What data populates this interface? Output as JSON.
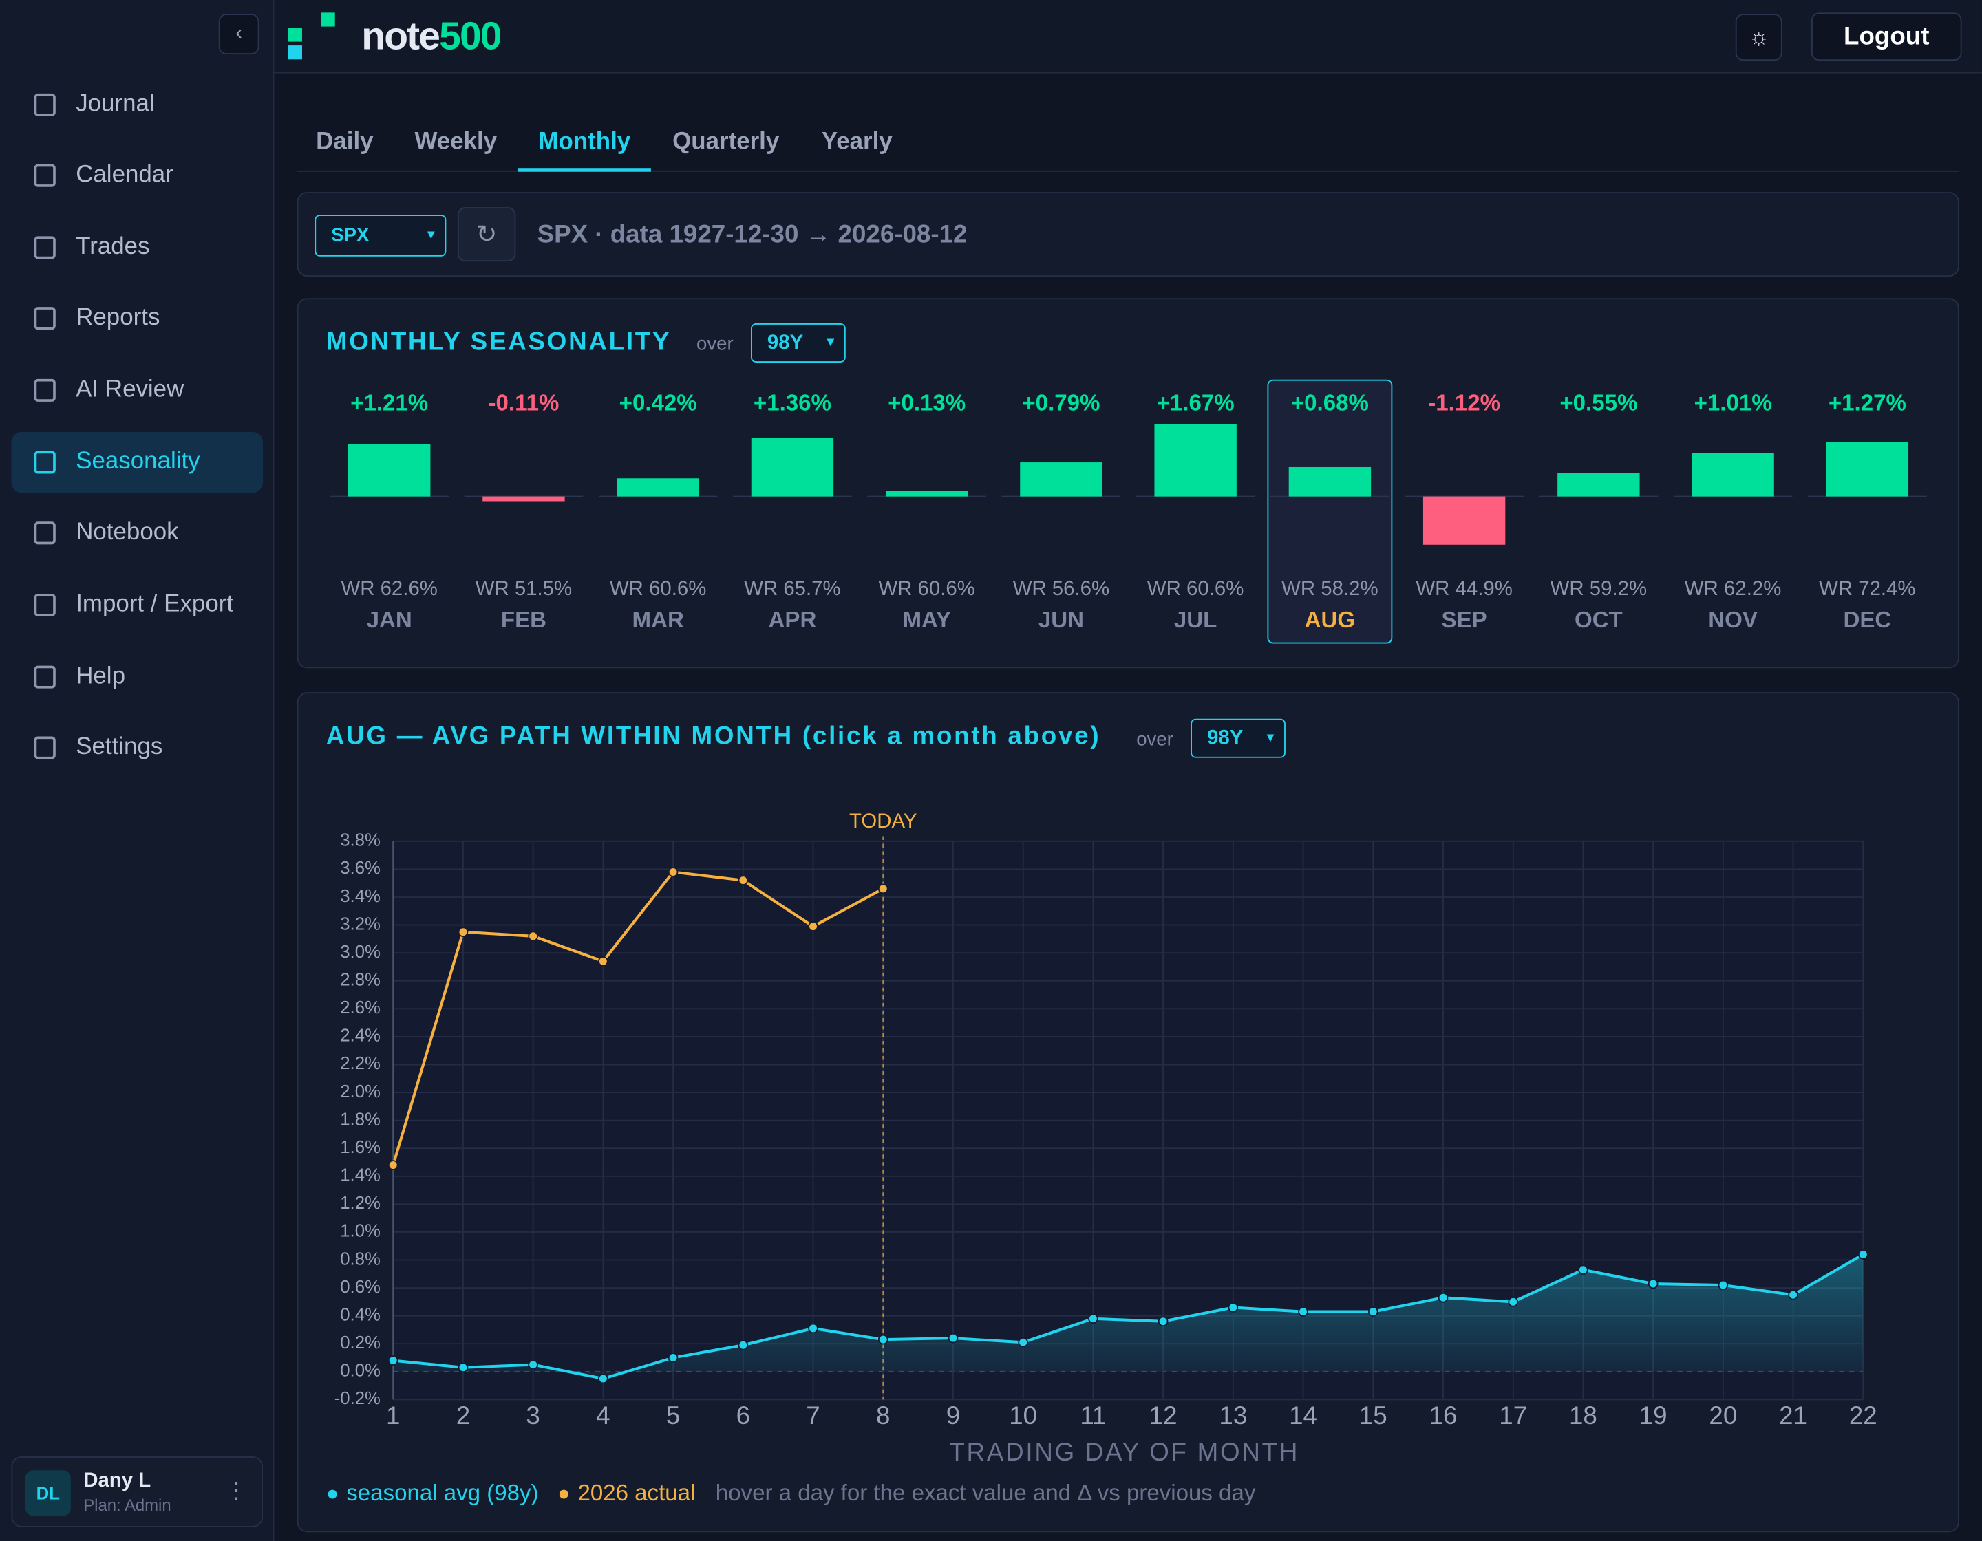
{
  "sidebar": {
    "nav": [
      "Journal",
      "Calendar",
      "Trades",
      "Reports",
      "AI Review",
      "Seasonality",
      "Notebook",
      "Import / Export",
      "Help",
      "Settings"
    ],
    "active": "Seasonality",
    "user": {
      "initials": "DL",
      "name": "Dany L",
      "plan": "Plan: Admin"
    }
  },
  "header": {
    "logo_a": "note",
    "logo_b": "500",
    "logout": "Logout"
  },
  "tabs": {
    "items": [
      "Daily",
      "Weekly",
      "Monthly",
      "Quarterly",
      "Yearly"
    ],
    "active": "Monthly"
  },
  "toolbar": {
    "symbol": "SPX",
    "refresh": "↻",
    "info": "SPX · data 1927-12-30 → 2026-08-12"
  },
  "seasonality": {
    "title": "MONTHLY SEASONALITY",
    "over": "over",
    "period": "98Y",
    "chart_data": {
      "type": "bar",
      "categories": [
        "JAN",
        "FEB",
        "MAR",
        "APR",
        "MAY",
        "JUN",
        "JUL",
        "AUG",
        "SEP",
        "OCT",
        "NOV",
        "DEC"
      ],
      "values": [
        1.21,
        -0.11,
        0.42,
        1.36,
        0.13,
        0.79,
        1.67,
        0.68,
        -1.12,
        0.55,
        1.01,
        1.27
      ],
      "value_labels": [
        "+1.21%",
        "-0.11%",
        "+0.42%",
        "+1.36%",
        "+0.13%",
        "+0.79%",
        "+1.67%",
        "+0.68%",
        "-1.12%",
        "+0.55%",
        "+1.01%",
        "+1.27%"
      ],
      "win_rate_labels": [
        "WR 62.6%",
        "WR 51.5%",
        "WR 60.6%",
        "WR 65.7%",
        "WR 60.6%",
        "WR 56.6%",
        "WR 60.6%",
        "WR 58.2%",
        "WR 44.9%",
        "WR 59.2%",
        "WR 62.2%",
        "WR 72.4%"
      ],
      "positive_color": "#00e09a",
      "negative_color": "#ff5f7e",
      "highlight": "AUG"
    }
  },
  "path": {
    "title": "AUG — AVG PATH WITHIN MONTH (click a month above)",
    "over": "over",
    "period": "98Y",
    "chart_data": {
      "type": "line",
      "x_label": "TRADING DAY OF MONTH",
      "x": [
        1,
        2,
        3,
        4,
        5,
        6,
        7,
        8,
        9,
        10,
        11,
        12,
        13,
        14,
        15,
        16,
        17,
        18,
        19,
        20,
        21,
        22
      ],
      "series": [
        {
          "name": "seasonal avg (98y)",
          "color": "#22d3ee",
          "area": true,
          "values": [
            0.08,
            0.03,
            0.05,
            -0.05,
            0.1,
            0.19,
            0.31,
            0.23,
            0.24,
            0.21,
            0.38,
            0.36,
            0.46,
            0.43,
            0.43,
            0.53,
            0.5,
            0.73,
            0.63,
            0.62,
            0.55,
            0.84
          ]
        },
        {
          "name": "2026 actual",
          "color": "#f5b041",
          "values": [
            1.48,
            3.15,
            3.12,
            2.94,
            3.58,
            3.52,
            3.19,
            3.46,
            null,
            null,
            null,
            null,
            null,
            null,
            null,
            null,
            null,
            null,
            null,
            null,
            null,
            null
          ]
        }
      ],
      "xlim": [
        1,
        22
      ],
      "xticks": [
        1,
        2,
        3,
        4,
        5,
        6,
        7,
        8,
        9,
        10,
        11,
        12,
        13,
        14,
        15,
        16,
        17,
        18,
        19,
        20,
        21,
        22
      ],
      "ylim": [
        -0.2,
        3.8
      ],
      "yticks": [
        {
          "value": -0.2,
          "label": "-0.2%"
        },
        {
          "value": 0,
          "label": "0.0%"
        },
        {
          "value": 0.2,
          "label": "0.2%"
        },
        {
          "value": 0.4,
          "label": "0.4%"
        },
        {
          "value": 0.6,
          "label": "0.6%"
        },
        {
          "value": 0.8,
          "label": "0.8%"
        },
        {
          "value": 1.0,
          "label": "1.0%"
        },
        {
          "value": 1.2,
          "label": "1.2%"
        },
        {
          "value": 1.4,
          "label": "1.4%"
        },
        {
          "value": 1.6,
          "label": "1.6%"
        },
        {
          "value": 1.8,
          "label": "1.8%"
        },
        {
          "value": 2.0,
          "label": "2.0%"
        },
        {
          "value": 2.2,
          "label": "2.2%"
        },
        {
          "value": 2.4,
          "label": "2.4%"
        },
        {
          "value": 2.6,
          "label": "2.6%"
        },
        {
          "value": 2.8,
          "label": "2.8%"
        },
        {
          "value": 3.0,
          "label": "3.0%"
        },
        {
          "value": 3.2,
          "label": "3.2%"
        },
        {
          "value": 3.4,
          "label": "3.4%"
        },
        {
          "value": 3.6,
          "label": "3.6%"
        },
        {
          "value": 3.8,
          "label": "3.8%"
        }
      ],
      "grid": true,
      "annotation": {
        "label": "TODAY",
        "x": 8
      },
      "hint": "hover a day for the exact value and Δ vs previous day"
    }
  }
}
